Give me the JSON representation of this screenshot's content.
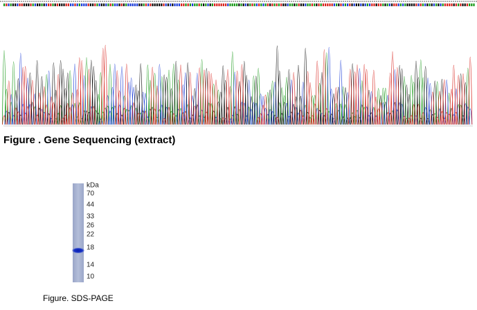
{
  "figures": [
    {
      "caption": "Figure . Gene Sequencing (extract)"
    },
    {
      "caption": "Figure. SDS-PAGE",
      "unit": "kDa",
      "markers": [
        70,
        44,
        33,
        26,
        22,
        18,
        14,
        10
      ]
    }
  ]
}
